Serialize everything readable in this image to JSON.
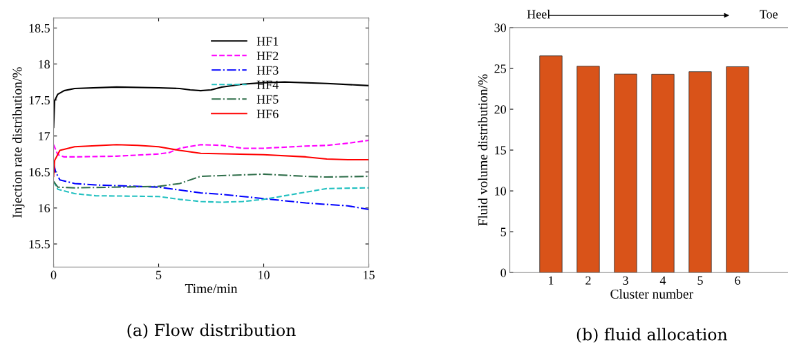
{
  "chart_data": [
    {
      "type": "line",
      "title": "(a) Flow distribution",
      "xlabel": "Time/min",
      "ylabel": "Injection rate distribution/%",
      "xlim": [
        0,
        15
      ],
      "xticks": [
        0,
        5,
        10,
        15
      ],
      "ylim": [
        15.18,
        18.64
      ],
      "yticks": [
        15.5,
        16,
        16.5,
        17,
        17.5,
        18,
        18.5
      ],
      "legend": "top right",
      "grid": false,
      "series": [
        {
          "name": "HF1",
          "color": "#000000",
          "line_style": "solid",
          "x": [
            0,
            0.05,
            0.2,
            0.5,
            1,
            3,
            5,
            6,
            6.5,
            7,
            7.5,
            8,
            9,
            10,
            11,
            13,
            15
          ],
          "values": [
            17.12,
            17.49,
            17.58,
            17.63,
            17.66,
            17.68,
            17.67,
            17.66,
            17.64,
            17.63,
            17.64,
            17.68,
            17.72,
            17.74,
            17.75,
            17.73,
            17.7
          ]
        },
        {
          "name": "HF2",
          "color": "#ff00ff",
          "line_style": "dashed",
          "x": [
            0,
            0.2,
            0.5,
            1,
            3,
            5,
            5.5,
            6,
            7,
            8,
            9,
            10,
            12,
            13,
            14,
            15
          ],
          "values": [
            16.88,
            16.74,
            16.71,
            16.71,
            16.72,
            16.75,
            16.77,
            16.83,
            16.88,
            16.87,
            16.83,
            16.83,
            16.86,
            16.87,
            16.9,
            16.94
          ]
        },
        {
          "name": "HF3",
          "color": "#0000ff",
          "line_style": "dashdot",
          "x": [
            0,
            0.1,
            0.3,
            1,
            2,
            5,
            6,
            7,
            8,
            10,
            12,
            14,
            15
          ],
          "values": [
            16.62,
            16.5,
            16.39,
            16.34,
            16.32,
            16.29,
            16.25,
            16.21,
            16.19,
            16.13,
            16.07,
            16.03,
            15.98
          ]
        },
        {
          "name": "HF4",
          "color": "#21c0c0",
          "line_style": "dashed",
          "x": [
            0,
            0.2,
            1,
            2,
            5,
            6,
            7,
            8,
            9,
            10,
            11,
            12,
            13,
            15
          ],
          "values": [
            16.37,
            16.26,
            16.2,
            16.17,
            16.16,
            16.12,
            16.09,
            16.08,
            16.09,
            16.12,
            16.17,
            16.22,
            16.27,
            16.28
          ]
        },
        {
          "name": "HF5",
          "color": "#2f6e4a",
          "line_style": "dashdot",
          "x": [
            0,
            0.2,
            1,
            5,
            6,
            7,
            8,
            10,
            12,
            13,
            15
          ],
          "values": [
            16.37,
            16.29,
            16.28,
            16.3,
            16.34,
            16.44,
            16.45,
            16.47,
            16.44,
            16.43,
            16.44
          ]
        },
        {
          "name": "HF6",
          "color": "#ff0000",
          "line_style": "solid",
          "x": [
            0,
            0.05,
            0.3,
            1,
            3,
            4,
            5,
            6,
            7,
            10,
            12,
            13,
            14,
            15
          ],
          "values": [
            16.44,
            16.66,
            16.8,
            16.85,
            16.88,
            16.87,
            16.85,
            16.8,
            16.76,
            16.74,
            16.71,
            16.68,
            16.67,
            16.67
          ]
        }
      ]
    },
    {
      "type": "bar",
      "title": "(b) fluid allocation",
      "xlabel": "Cluster number",
      "ylabel": "Fluid volume distribution/%",
      "categories": [
        "1",
        "2",
        "3",
        "4",
        "5",
        "6"
      ],
      "values": [
        26.54,
        25.27,
        24.31,
        24.29,
        24.6,
        25.21
      ],
      "color": "#d95319",
      "ylim": [
        0,
        30
      ],
      "yticks": [
        0,
        5,
        10,
        15,
        20,
        25,
        30
      ],
      "grid": false,
      "annotations": [
        "Heel",
        "Toe"
      ]
    }
  ]
}
